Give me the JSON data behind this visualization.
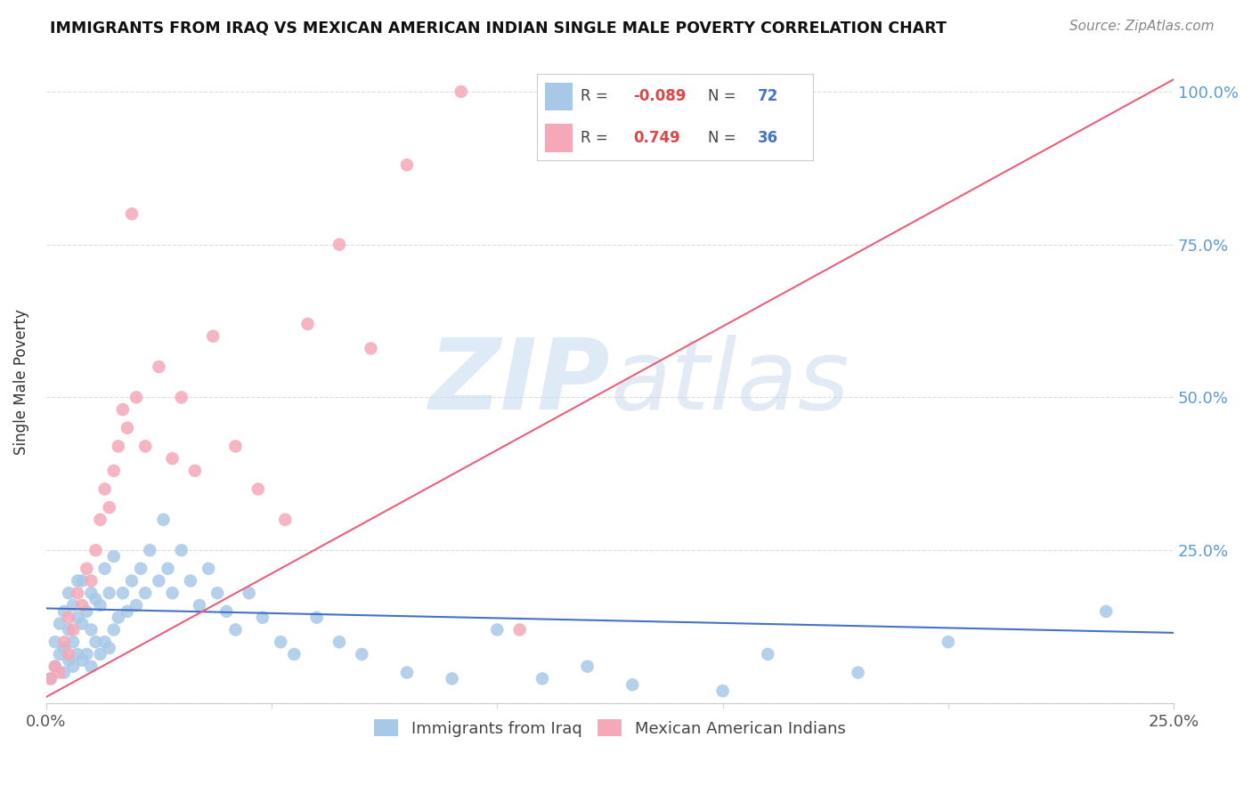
{
  "title": "IMMIGRANTS FROM IRAQ VS MEXICAN AMERICAN INDIAN SINGLE MALE POVERTY CORRELATION CHART",
  "source": "Source: ZipAtlas.com",
  "ylabel": "Single Male Poverty",
  "legend_iraq": "Immigrants from Iraq",
  "legend_indian": "Mexican American Indians",
  "r_iraq": "-0.089",
  "n_iraq": "72",
  "r_indian": "0.749",
  "n_indian": "36",
  "iraq_color": "#a8c8e8",
  "indian_color": "#f4a8b8",
  "iraq_line_color": "#4472c4",
  "indian_line_color": "#e8607a",
  "xlim": [
    0.0,
    0.25
  ],
  "ylim": [
    0.0,
    1.05
  ],
  "background_color": "#ffffff",
  "grid_color": "#dddddd",
  "right_tick_color": "#5b9bd5",
  "iraq_x": [
    0.001,
    0.002,
    0.002,
    0.003,
    0.003,
    0.004,
    0.004,
    0.004,
    0.005,
    0.005,
    0.005,
    0.006,
    0.006,
    0.006,
    0.007,
    0.007,
    0.007,
    0.008,
    0.008,
    0.008,
    0.009,
    0.009,
    0.01,
    0.01,
    0.01,
    0.011,
    0.011,
    0.012,
    0.012,
    0.013,
    0.013,
    0.014,
    0.014,
    0.015,
    0.015,
    0.016,
    0.017,
    0.018,
    0.019,
    0.02,
    0.021,
    0.022,
    0.023,
    0.025,
    0.026,
    0.027,
    0.028,
    0.03,
    0.032,
    0.034,
    0.036,
    0.038,
    0.04,
    0.042,
    0.045,
    0.048,
    0.052,
    0.055,
    0.06,
    0.065,
    0.07,
    0.08,
    0.09,
    0.1,
    0.11,
    0.12,
    0.13,
    0.15,
    0.16,
    0.18,
    0.2,
    0.235
  ],
  "iraq_y": [
    0.04,
    0.06,
    0.1,
    0.08,
    0.13,
    0.05,
    0.09,
    0.15,
    0.07,
    0.12,
    0.18,
    0.06,
    0.1,
    0.16,
    0.08,
    0.14,
    0.2,
    0.07,
    0.13,
    0.2,
    0.08,
    0.15,
    0.06,
    0.12,
    0.18,
    0.1,
    0.17,
    0.08,
    0.16,
    0.1,
    0.22,
    0.09,
    0.18,
    0.12,
    0.24,
    0.14,
    0.18,
    0.15,
    0.2,
    0.16,
    0.22,
    0.18,
    0.25,
    0.2,
    0.3,
    0.22,
    0.18,
    0.25,
    0.2,
    0.16,
    0.22,
    0.18,
    0.15,
    0.12,
    0.18,
    0.14,
    0.1,
    0.08,
    0.14,
    0.1,
    0.08,
    0.05,
    0.04,
    0.12,
    0.04,
    0.06,
    0.03,
    0.02,
    0.08,
    0.05,
    0.1,
    0.15
  ],
  "indian_x": [
    0.001,
    0.002,
    0.003,
    0.004,
    0.005,
    0.005,
    0.006,
    0.007,
    0.008,
    0.009,
    0.01,
    0.011,
    0.012,
    0.013,
    0.014,
    0.015,
    0.016,
    0.017,
    0.018,
    0.019,
    0.02,
    0.022,
    0.025,
    0.028,
    0.03,
    0.033,
    0.037,
    0.042,
    0.047,
    0.053,
    0.058,
    0.065,
    0.072,
    0.08,
    0.092,
    0.105
  ],
  "indian_y": [
    0.04,
    0.06,
    0.05,
    0.1,
    0.08,
    0.14,
    0.12,
    0.18,
    0.16,
    0.22,
    0.2,
    0.25,
    0.3,
    0.35,
    0.32,
    0.38,
    0.42,
    0.48,
    0.45,
    0.8,
    0.5,
    0.42,
    0.55,
    0.4,
    0.5,
    0.38,
    0.6,
    0.42,
    0.35,
    0.3,
    0.62,
    0.75,
    0.58,
    0.88,
    1.0,
    0.12
  ],
  "iraq_line_x": [
    0.0,
    0.25
  ],
  "iraq_line_y": [
    0.155,
    0.115
  ],
  "indian_line_x": [
    0.0,
    0.25
  ],
  "indian_line_y": [
    0.01,
    1.02
  ]
}
